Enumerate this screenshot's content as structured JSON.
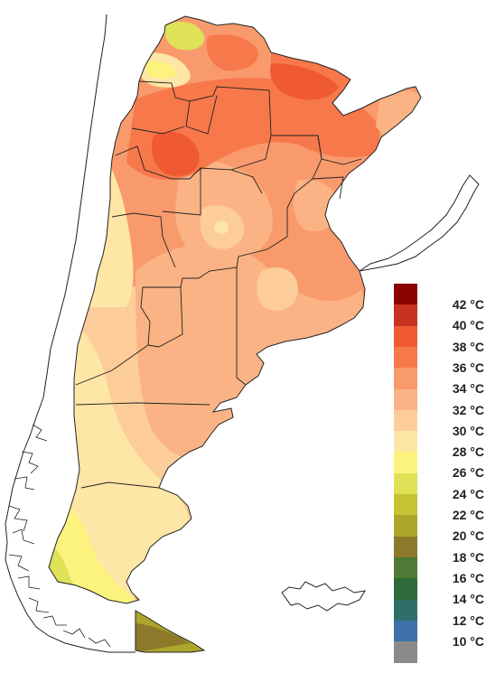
{
  "legend": {
    "unit": "°C",
    "classes": [
      {
        "value": 42,
        "label": "42 °C",
        "color": "#8b0000"
      },
      {
        "value": 40,
        "label": "40 °C",
        "color": "#c8321e"
      },
      {
        "value": 38,
        "label": "38 °C",
        "color": "#f05a32"
      },
      {
        "value": 36,
        "label": "36 °C",
        "color": "#f7784b"
      },
      {
        "value": 34,
        "label": "34 °C",
        "color": "#f99a6c"
      },
      {
        "value": 32,
        "label": "32 °C",
        "color": "#fbb385"
      },
      {
        "value": 30,
        "label": "30 °C",
        "color": "#fccd99"
      },
      {
        "value": 28,
        "label": "28 °C",
        "color": "#fde6a6"
      },
      {
        "value": 26,
        "label": "26 °C",
        "color": "#fbf37e"
      },
      {
        "value": 24,
        "label": "24 °C",
        "color": "#dfe157"
      },
      {
        "value": 22,
        "label": "22 °C",
        "color": "#c6c433"
      },
      {
        "value": 20,
        "label": "20 °C",
        "color": "#ada62a"
      },
      {
        "value": 18,
        "label": "18 °C",
        "color": "#8c7a2a"
      },
      {
        "value": 16,
        "label": "16 °C",
        "color": "#4f7a35"
      },
      {
        "value": 14,
        "label": "14 °C",
        "color": "#2f6a3a"
      },
      {
        "value": 12,
        "label": "12 °C",
        "color": "#2f6f6b"
      },
      {
        "value": 10,
        "label": "10 °C",
        "color": "#3d71a8"
      },
      {
        "value": null,
        "label": "",
        "color": "#8a8a8a"
      }
    ]
  },
  "map": {
    "region": "Argentina",
    "variable": "temperature",
    "islands": "Malvinas"
  }
}
